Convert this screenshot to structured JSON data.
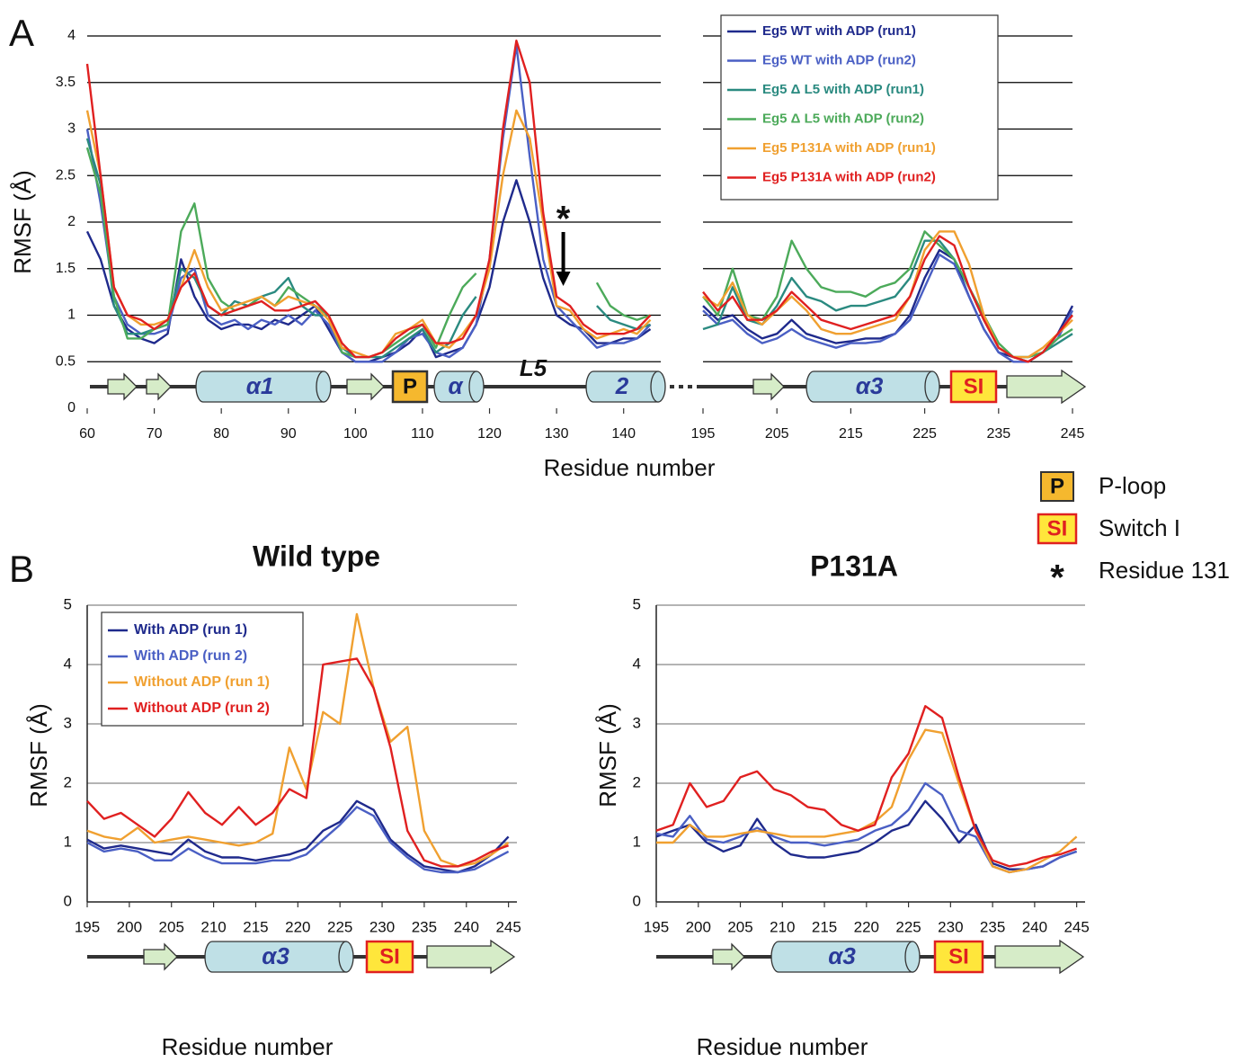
{
  "panel_labels": [
    "A",
    "B"
  ],
  "key": [
    {
      "symbol": "P",
      "label": "P-loop"
    },
    {
      "symbol": "SI",
      "label": "Switch I"
    },
    {
      "symbol": "*",
      "label": "Residue 131"
    }
  ],
  "chart_data": [
    {
      "type": "line",
      "xlabel": "Residue number",
      "ylabel": "RMSF (Å)",
      "xlim": [
        60,
        245
      ],
      "axis_break": [
        145,
        195
      ],
      "ylim": [
        0,
        4
      ],
      "yticks": [
        0,
        0.5,
        1,
        1.5,
        2,
        2.5,
        3,
        3.5,
        4
      ],
      "xticks": [
        60,
        70,
        80,
        90,
        100,
        110,
        120,
        130,
        140,
        195,
        205,
        215,
        225,
        235,
        245
      ],
      "grid": true,
      "legend": "upper right",
      "structure_labels": [
        "α1",
        "P",
        "α",
        "L5",
        "2",
        "α3",
        "SI"
      ],
      "annotations": [
        {
          "text": "*",
          "x": 131
        }
      ],
      "x": [
        60,
        62,
        64,
        66,
        68,
        70,
        72,
        74,
        76,
        78,
        80,
        82,
        84,
        86,
        88,
        90,
        92,
        94,
        96,
        98,
        100,
        102,
        104,
        106,
        108,
        110,
        112,
        114,
        116,
        118,
        120,
        122,
        124,
        126,
        128,
        130,
        132,
        134,
        136,
        138,
        140,
        142,
        144,
        null,
        195,
        197,
        199,
        201,
        203,
        205,
        207,
        209,
        211,
        213,
        215,
        217,
        219,
        221,
        223,
        225,
        227,
        229,
        231,
        233,
        235,
        237,
        239,
        241,
        243,
        245
      ],
      "series": [
        {
          "name": "Eg5 WT with ADP (run1)",
          "color": "#1f2a8c",
          "values": [
            1.9,
            1.6,
            1.1,
            0.85,
            0.75,
            0.7,
            0.8,
            1.6,
            1.2,
            0.95,
            0.85,
            0.9,
            0.9,
            0.85,
            0.95,
            0.9,
            1.0,
            1.1,
            0.85,
            0.6,
            0.5,
            0.5,
            0.55,
            0.6,
            0.7,
            0.85,
            0.55,
            0.6,
            0.65,
            0.9,
            1.3,
            2.0,
            2.45,
            2.0,
            1.4,
            1.0,
            0.9,
            0.85,
            0.7,
            0.7,
            0.75,
            0.75,
            0.85,
            null,
            1.1,
            0.95,
            1.0,
            0.85,
            0.75,
            0.8,
            0.95,
            0.8,
            0.75,
            0.7,
            0.72,
            0.75,
            0.75,
            0.8,
            1.0,
            1.4,
            1.7,
            1.6,
            1.2,
            0.85,
            0.6,
            0.55,
            0.5,
            0.6,
            0.8,
            1.1
          ]
        },
        {
          "name": "Eg5 WT with ADP (run2)",
          "color": "#4a5fc4",
          "values": [
            3.0,
            2.2,
            1.2,
            0.9,
            0.8,
            0.8,
            0.85,
            1.4,
            1.5,
            1.0,
            0.9,
            0.95,
            0.85,
            0.95,
            0.9,
            1.0,
            0.9,
            1.05,
            0.9,
            0.6,
            0.5,
            0.5,
            0.5,
            0.6,
            0.75,
            0.8,
            0.6,
            0.55,
            0.65,
            0.9,
            1.6,
            2.9,
            3.9,
            2.7,
            1.6,
            1.1,
            0.95,
            0.8,
            0.65,
            0.7,
            0.7,
            0.75,
            0.9,
            null,
            1.05,
            0.9,
            0.95,
            0.8,
            0.7,
            0.75,
            0.85,
            0.75,
            0.7,
            0.65,
            0.7,
            0.7,
            0.72,
            0.8,
            0.95,
            1.3,
            1.65,
            1.55,
            1.2,
            0.85,
            0.6,
            0.5,
            0.5,
            0.6,
            0.75,
            1.05
          ]
        },
        {
          "name": "Eg5 Δ L5 with ADP (run1)",
          "color": "#2a8a80",
          "values": [
            2.9,
            2.4,
            1.1,
            0.8,
            0.8,
            0.85,
            0.9,
            1.5,
            1.4,
            1.1,
            1.0,
            1.15,
            1.1,
            1.2,
            1.25,
            1.4,
            1.1,
            1.0,
            1.0,
            0.65,
            0.55,
            0.55,
            0.55,
            0.65,
            0.75,
            0.85,
            0.6,
            0.7,
            1.0,
            1.2,
            null,
            null,
            null,
            null,
            null,
            null,
            null,
            null,
            1.1,
            0.95,
            0.9,
            0.85,
            0.9,
            null,
            0.85,
            0.9,
            1.3,
            0.95,
            0.9,
            1.1,
            1.4,
            1.2,
            1.15,
            1.05,
            1.1,
            1.1,
            1.15,
            1.2,
            1.4,
            1.8,
            1.8,
            1.6,
            1.3,
            0.95,
            0.65,
            0.55,
            0.55,
            0.6,
            0.7,
            0.8
          ]
        },
        {
          "name": "Eg5 Δ L5 with ADP (run2)",
          "color": "#4caa5a",
          "values": [
            2.8,
            2.3,
            1.2,
            0.75,
            0.75,
            0.85,
            0.9,
            1.9,
            2.2,
            1.4,
            1.15,
            1.05,
            1.1,
            1.2,
            1.1,
            1.3,
            1.2,
            1.1,
            1.0,
            0.6,
            0.55,
            0.55,
            0.6,
            0.7,
            0.8,
            0.9,
            0.65,
            1.0,
            1.3,
            1.45,
            null,
            null,
            null,
            null,
            null,
            null,
            null,
            null,
            1.35,
            1.1,
            1.0,
            0.95,
            1.0,
            null,
            1.2,
            1.0,
            1.5,
            1.0,
            0.95,
            1.2,
            1.8,
            1.5,
            1.3,
            1.25,
            1.25,
            1.2,
            1.3,
            1.35,
            1.5,
            1.9,
            1.75,
            1.6,
            1.3,
            1.0,
            0.7,
            0.55,
            0.55,
            0.6,
            0.75,
            0.85
          ]
        },
        {
          "name": "Eg5 P131A with ADP (run1)",
          "color": "#f0a030",
          "values": [
            3.2,
            2.5,
            1.3,
            1.0,
            0.9,
            0.9,
            0.95,
            1.3,
            1.7,
            1.3,
            1.05,
            1.1,
            1.15,
            1.2,
            1.1,
            1.2,
            1.15,
            1.1,
            0.95,
            0.65,
            0.6,
            0.55,
            0.6,
            0.8,
            0.85,
            0.95,
            0.7,
            0.65,
            0.8,
            1.0,
            1.5,
            2.5,
            3.2,
            2.9,
            2.0,
            1.1,
            1.05,
            0.85,
            0.75,
            0.8,
            0.85,
            0.8,
            0.95,
            null,
            1.2,
            1.1,
            1.35,
            1.0,
            0.9,
            1.05,
            1.2,
            1.05,
            0.85,
            0.8,
            0.8,
            0.85,
            0.9,
            0.95,
            1.2,
            1.7,
            1.9,
            1.9,
            1.55,
            1.0,
            0.65,
            0.55,
            0.55,
            0.65,
            0.8,
            0.95
          ]
        },
        {
          "name": "Eg5 P131A with ADP (run2)",
          "color": "#e02020",
          "values": [
            3.7,
            2.5,
            1.3,
            1.0,
            0.95,
            0.85,
            0.95,
            1.3,
            1.45,
            1.1,
            1.0,
            1.05,
            1.1,
            1.15,
            1.05,
            1.05,
            1.1,
            1.15,
            1.0,
            0.7,
            0.55,
            0.55,
            0.6,
            0.75,
            0.85,
            0.9,
            0.7,
            0.7,
            0.75,
            1.0,
            1.6,
            3.0,
            3.95,
            3.5,
            2.1,
            1.2,
            1.1,
            0.9,
            0.8,
            0.8,
            0.8,
            0.85,
            1.0,
            null,
            1.25,
            1.05,
            1.2,
            0.95,
            0.95,
            1.05,
            1.25,
            1.1,
            0.95,
            0.9,
            0.85,
            0.9,
            0.95,
            1.0,
            1.2,
            1.6,
            1.85,
            1.75,
            1.3,
            0.95,
            0.65,
            0.55,
            0.5,
            0.6,
            0.8,
            1.0
          ]
        }
      ]
    },
    {
      "type": "line",
      "title": "Wild type",
      "xlabel": "Residue number",
      "ylabel": "RMSF (Å)",
      "xlim": [
        195,
        246
      ],
      "ylim": [
        0,
        5
      ],
      "yticks": [
        0,
        1,
        2,
        3,
        4,
        5
      ],
      "xticks": [
        195,
        200,
        205,
        210,
        215,
        220,
        225,
        230,
        235,
        240,
        245
      ],
      "grid": true,
      "legend": "upper left",
      "structure_labels": [
        "α3",
        "SI"
      ],
      "x": [
        195,
        197,
        199,
        201,
        203,
        205,
        207,
        209,
        211,
        213,
        215,
        217,
        219,
        221,
        223,
        225,
        227,
        229,
        231,
        233,
        235,
        237,
        239,
        241,
        243,
        245
      ],
      "series": [
        {
          "name": "With ADP (run 1)",
          "color": "#1f2a8c",
          "values": [
            1.05,
            0.9,
            0.95,
            0.9,
            0.85,
            0.8,
            1.05,
            0.85,
            0.75,
            0.75,
            0.7,
            0.75,
            0.8,
            0.9,
            1.2,
            1.35,
            1.7,
            1.55,
            1.05,
            0.8,
            0.6,
            0.55,
            0.5,
            0.6,
            0.8,
            1.1
          ]
        },
        {
          "name": "With ADP (run 2)",
          "color": "#4a5fc4",
          "values": [
            1.0,
            0.85,
            0.9,
            0.85,
            0.7,
            0.7,
            0.9,
            0.75,
            0.65,
            0.65,
            0.65,
            0.7,
            0.7,
            0.8,
            1.05,
            1.3,
            1.6,
            1.45,
            1.0,
            0.75,
            0.55,
            0.5,
            0.5,
            0.55,
            0.7,
            0.85
          ]
        },
        {
          "name": "Without ADP (run 1)",
          "color": "#f0a030",
          "values": [
            1.2,
            1.1,
            1.05,
            1.25,
            1.0,
            1.05,
            1.1,
            1.05,
            1.0,
            0.95,
            1.0,
            1.15,
            2.6,
            1.9,
            3.2,
            3.0,
            4.85,
            3.6,
            2.7,
            2.95,
            1.2,
            0.7,
            0.6,
            0.65,
            0.8,
            1.0
          ]
        },
        {
          "name": "Without ADP (run 2)",
          "color": "#e02020",
          "values": [
            1.7,
            1.4,
            1.5,
            1.3,
            1.1,
            1.4,
            1.85,
            1.5,
            1.3,
            1.6,
            1.3,
            1.5,
            1.9,
            1.75,
            4.0,
            4.05,
            4.1,
            3.6,
            2.6,
            1.2,
            0.7,
            0.6,
            0.6,
            0.7,
            0.85,
            0.95
          ]
        }
      ]
    },
    {
      "type": "line",
      "title": "P131A",
      "xlabel": "Residue number",
      "ylabel": "RMSF (Å)",
      "xlim": [
        195,
        246
      ],
      "ylim": [
        0,
        5
      ],
      "yticks": [
        0,
        1,
        2,
        3,
        4,
        5
      ],
      "xticks": [
        195,
        200,
        205,
        210,
        215,
        220,
        225,
        230,
        235,
        240,
        245
      ],
      "grid": true,
      "structure_labels": [
        "α3",
        "SI"
      ],
      "x": [
        195,
        197,
        199,
        201,
        203,
        205,
        207,
        209,
        211,
        213,
        215,
        217,
        219,
        221,
        223,
        225,
        227,
        229,
        231,
        233,
        235,
        237,
        239,
        241,
        243,
        245
      ],
      "series": [
        {
          "color": "#1f2a8c",
          "values": [
            1.1,
            1.2,
            1.3,
            1.0,
            0.85,
            0.95,
            1.4,
            1.0,
            0.8,
            0.75,
            0.75,
            0.8,
            0.85,
            1.0,
            1.2,
            1.3,
            1.7,
            1.4,
            1.0,
            1.3,
            0.65,
            0.55,
            0.55,
            0.6,
            0.75,
            0.85
          ]
        },
        {
          "color": "#4a5fc4",
          "values": [
            1.15,
            1.1,
            1.45,
            1.05,
            1.0,
            1.1,
            1.25,
            1.1,
            1.0,
            1.0,
            0.95,
            1.0,
            1.05,
            1.2,
            1.3,
            1.55,
            2.0,
            1.8,
            1.2,
            1.1,
            0.6,
            0.5,
            0.55,
            0.6,
            0.75,
            0.85
          ]
        },
        {
          "color": "#f0a030",
          "values": [
            1.0,
            1.0,
            1.3,
            1.1,
            1.1,
            1.15,
            1.2,
            1.15,
            1.1,
            1.1,
            1.1,
            1.15,
            1.2,
            1.35,
            1.6,
            2.4,
            2.9,
            2.85,
            2.0,
            1.2,
            0.6,
            0.5,
            0.55,
            0.7,
            0.85,
            1.1
          ]
        },
        {
          "color": "#e02020",
          "values": [
            1.2,
            1.3,
            2.0,
            1.6,
            1.7,
            2.1,
            2.2,
            1.9,
            1.8,
            1.6,
            1.55,
            1.3,
            1.2,
            1.3,
            2.1,
            2.5,
            3.3,
            3.1,
            2.1,
            1.2,
            0.7,
            0.6,
            0.65,
            0.75,
            0.8,
            0.9
          ]
        }
      ]
    }
  ]
}
